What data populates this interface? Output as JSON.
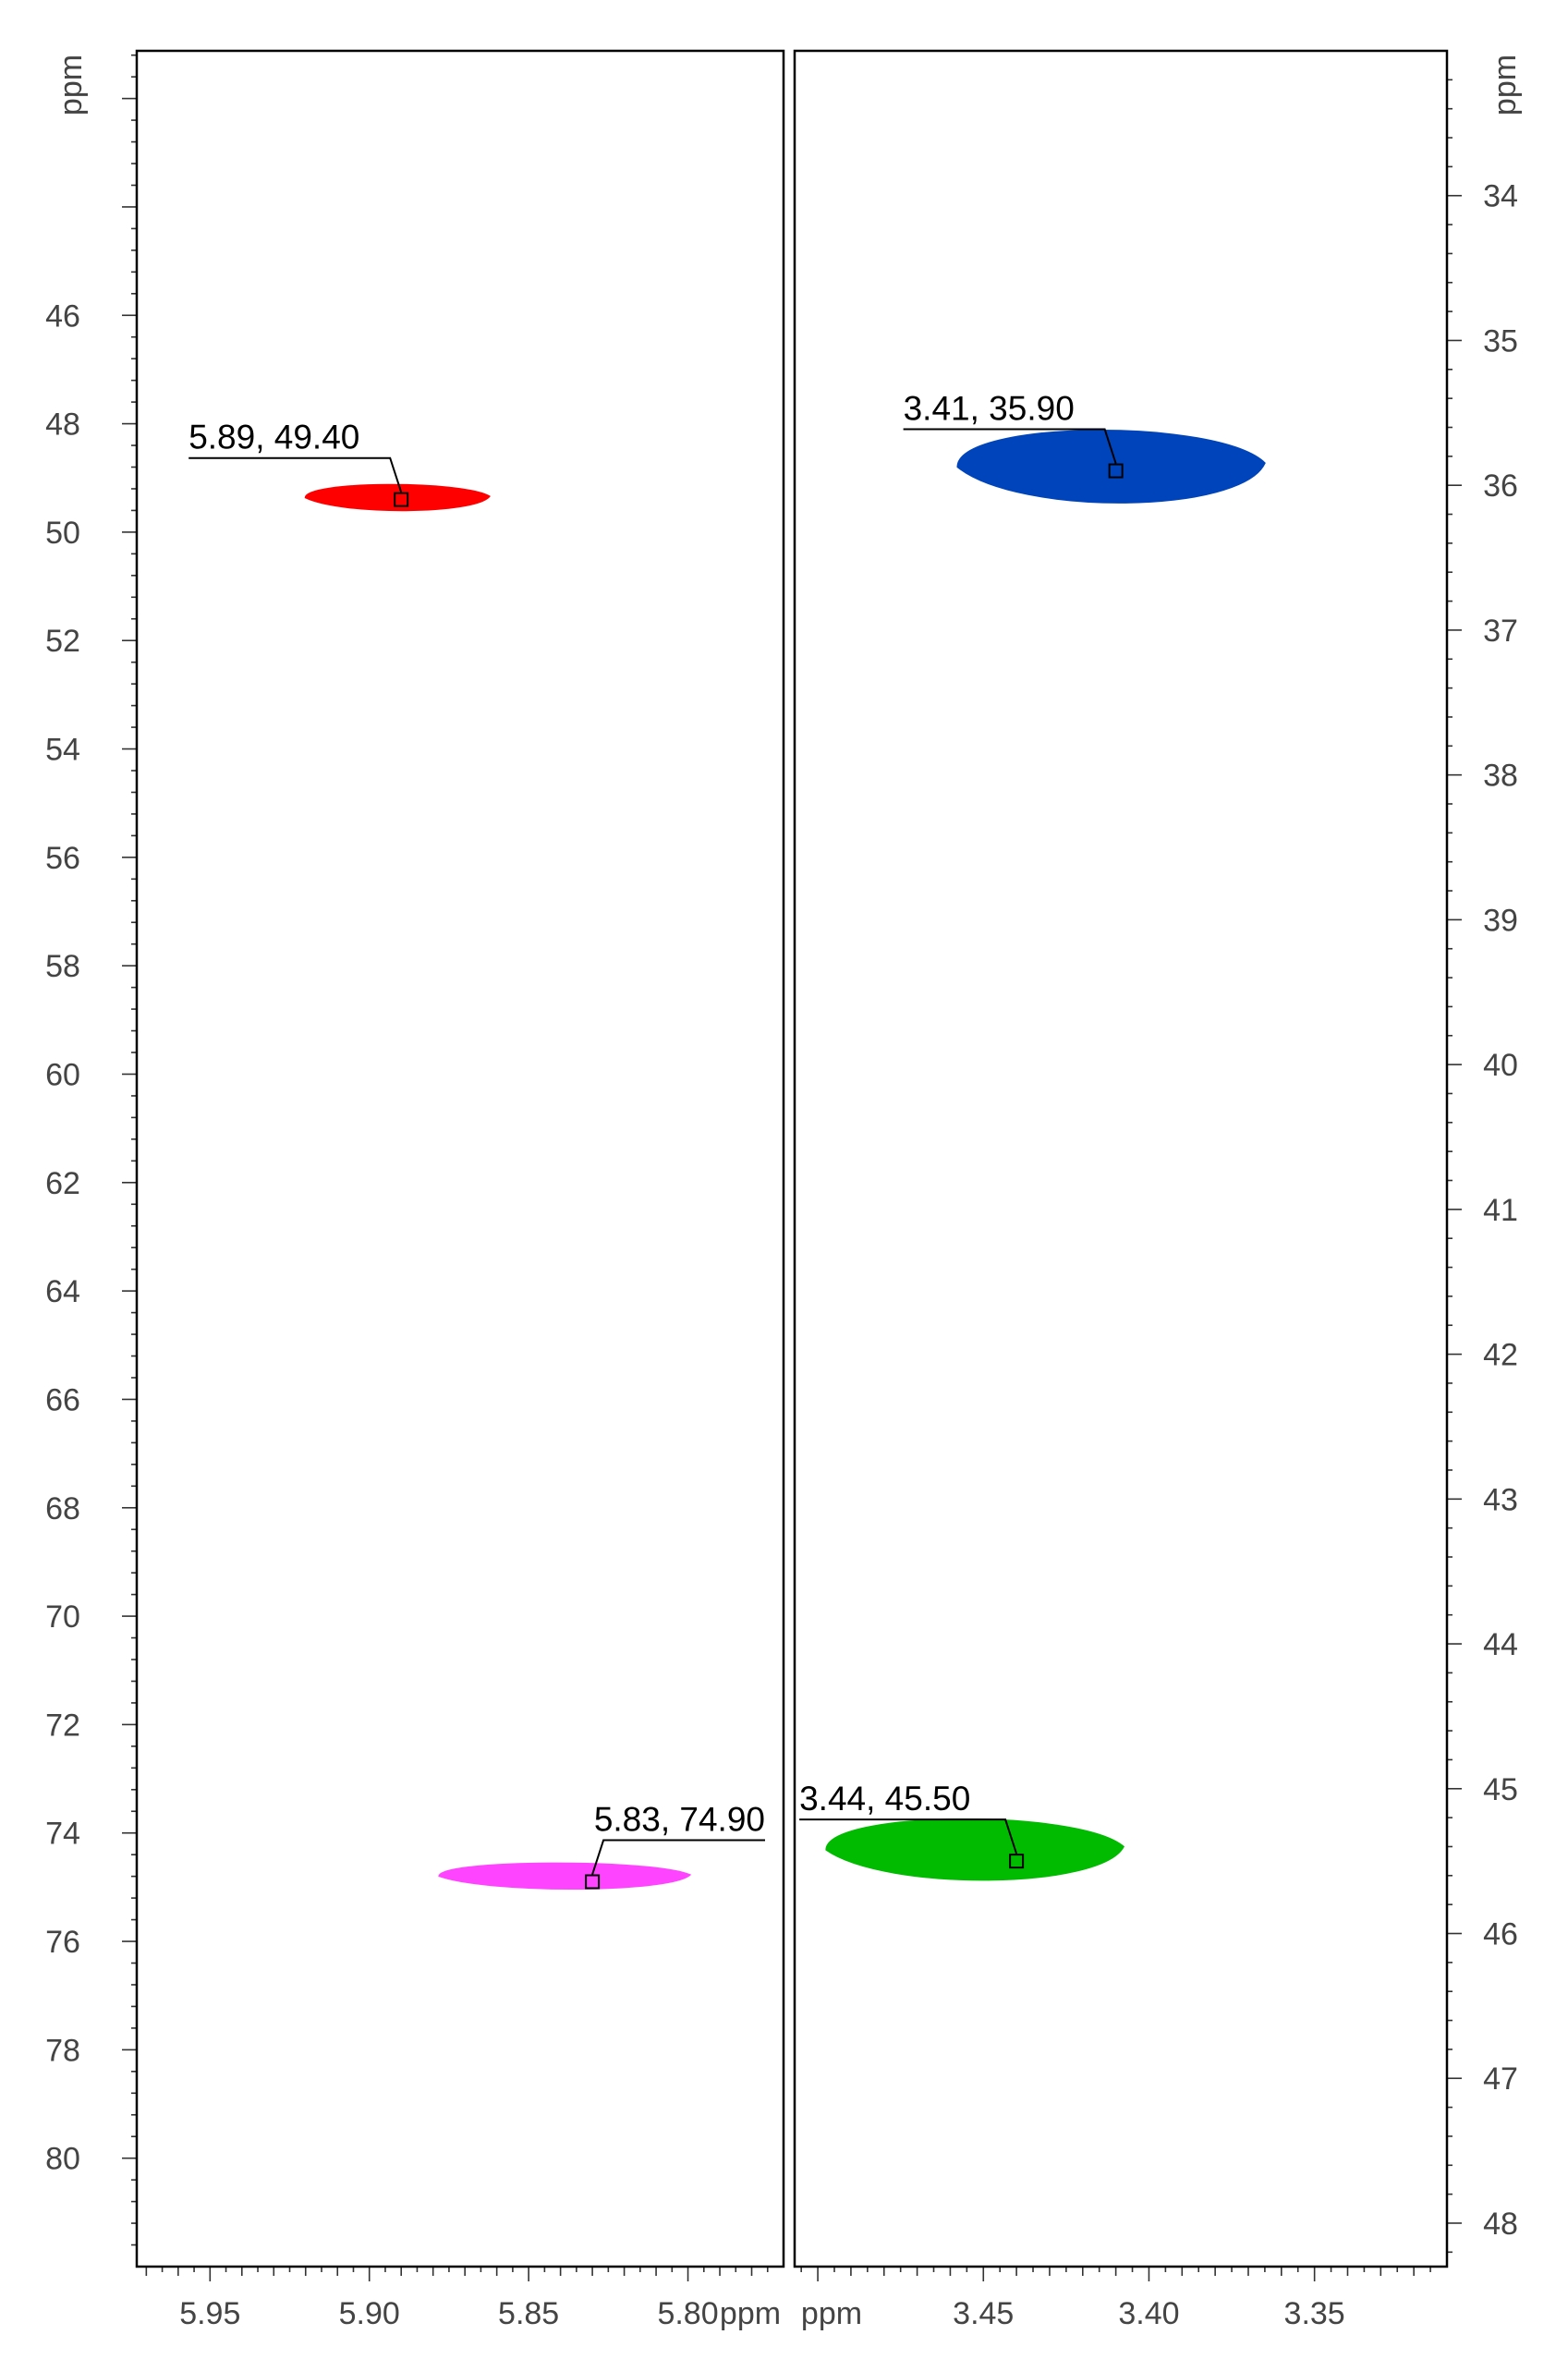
{
  "chart_data": {
    "type": "scatter",
    "title": "",
    "axis_unit": "ppm",
    "panels": [
      {
        "xlim": [
          5.973,
          5.77
        ],
        "xticks": [
          "5.95",
          "5.90",
          "5.85",
          "5.80"
        ],
        "ylim": [
          41.12,
          82.0
        ],
        "yticks": [
          "46",
          "48",
          "50",
          "52",
          "54",
          "56",
          "58",
          "60",
          "62",
          "64",
          "66",
          "68",
          "70",
          "72",
          "74",
          "76",
          "78",
          "80"
        ],
        "yaxis_side": "left",
        "peaks": [
          {
            "x": 5.89,
            "y": 49.4,
            "label": "5.89, 49.40",
            "color": "#ff0000",
            "x_width": 0.058,
            "y_height": 0.55
          },
          {
            "x": 5.83,
            "y": 74.9,
            "label": "5.83, 74.90",
            "color": "#ff44ff",
            "x_width": 0.079,
            "y_height": 0.55
          }
        ]
      },
      {
        "xlim": [
          3.507,
          3.31
        ],
        "xticks": [
          "3.45",
          "3.40",
          "3.35"
        ],
        "ylim": [
          33.0,
          48.3
        ],
        "yticks": [
          "34",
          "35",
          "36",
          "37",
          "38",
          "39",
          "40",
          "41",
          "42",
          "43",
          "44",
          "45",
          "46",
          "47",
          "48"
        ],
        "yaxis_side": "right",
        "peaks": [
          {
            "x": 3.41,
            "y": 35.9,
            "label": "3.41, 35.90",
            "color": "#0044bb",
            "x_width": 0.093,
            "y_height": 0.57
          },
          {
            "x": 3.44,
            "y": 45.5,
            "label": "3.44, 45.50",
            "color": "#00bb00",
            "x_width": 0.09,
            "y_height": 0.48
          }
        ]
      }
    ]
  }
}
